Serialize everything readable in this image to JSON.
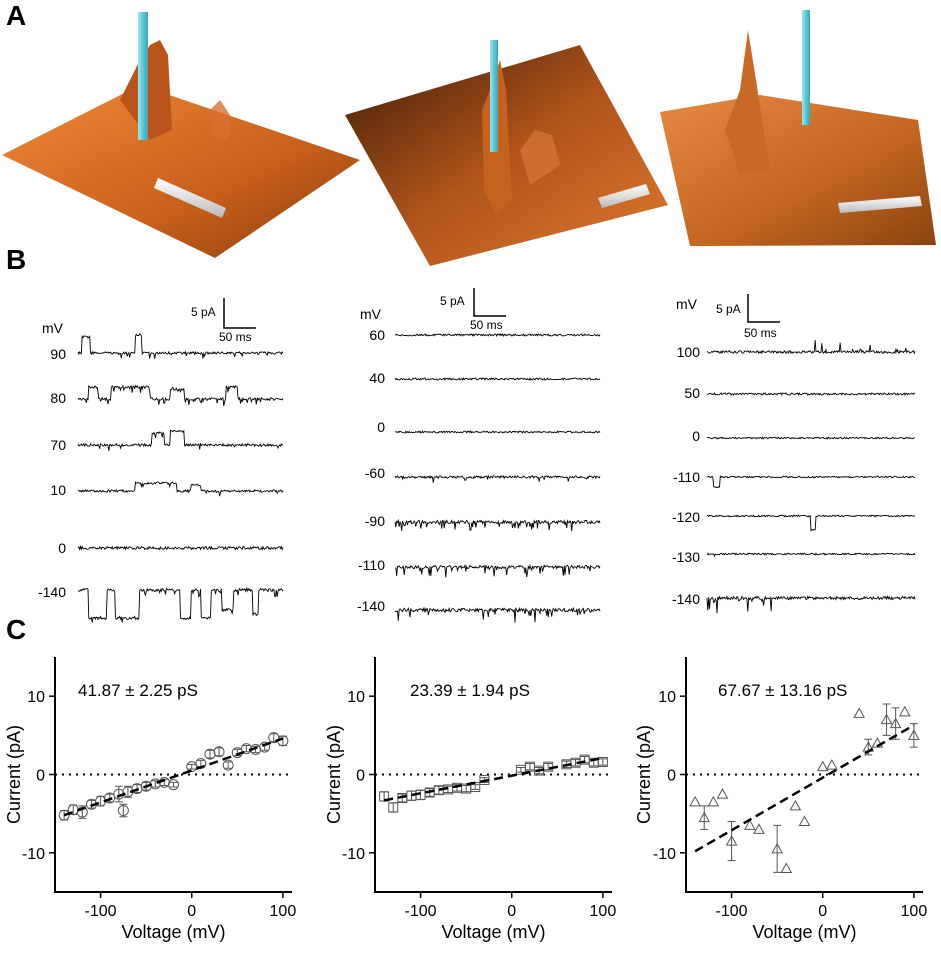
{
  "figure": {
    "panel_labels": [
      "A",
      "B",
      "C"
    ],
    "colors": {
      "surface": "#c8601a",
      "surface_light": "#f08a3a",
      "pipette": "#7fd6e0",
      "trace": "#000000",
      "fit": "#000000"
    }
  },
  "panelA": {
    "surfaces": [
      {
        "name": "surface-1"
      },
      {
        "name": "surface-2"
      },
      {
        "name": "surface-3"
      }
    ]
  },
  "panelB": {
    "columns": [
      {
        "mv_label": "mV",
        "scale_pA": "5 pA",
        "scale_ms": "50 ms",
        "voltages": [
          "90",
          "80",
          "70",
          "10",
          "0",
          "-140"
        ]
      },
      {
        "mv_label": "mV",
        "scale_pA": "5 pA",
        "scale_ms": "50 ms",
        "voltages": [
          "60",
          "40",
          "0",
          "-60",
          "-90",
          "-110",
          "-140"
        ]
      },
      {
        "mv_label": "mV",
        "scale_pA": "5 pA",
        "scale_ms": "50 ms",
        "voltages": [
          "100",
          "50",
          "0",
          "-110",
          "-120",
          "-130",
          "-140"
        ]
      }
    ]
  },
  "chart_data": [
    {
      "type": "scatter",
      "title": "",
      "annotation": "41.87 ± 2.25 pS",
      "xlabel": "Voltage (mV)",
      "ylabel": "Current (pA)",
      "xlim": [
        -150,
        110
      ],
      "ylim": [
        -15,
        15
      ],
      "xticks": [
        -100,
        0,
        100
      ],
      "yticks": [
        -10,
        0,
        10
      ],
      "marker": "circle",
      "zero_line": "dotted",
      "fit": {
        "x": [
          -140,
          100
        ],
        "y": [
          -5.2,
          4.6
        ]
      },
      "points": [
        {
          "x": -140,
          "y": -5.2,
          "err": 0.6
        },
        {
          "x": -130,
          "y": -4.5,
          "err": 0.6
        },
        {
          "x": -120,
          "y": -4.8,
          "err": 0.8
        },
        {
          "x": -110,
          "y": -3.8,
          "err": 0.5
        },
        {
          "x": -100,
          "y": -3.4,
          "err": 0.6
        },
        {
          "x": -90,
          "y": -3.0,
          "err": 0.5
        },
        {
          "x": -80,
          "y": -2.5,
          "err": 1.0
        },
        {
          "x": -75,
          "y": -4.6,
          "err": 0.8
        },
        {
          "x": -70,
          "y": -2.2,
          "err": 0.7
        },
        {
          "x": -60,
          "y": -1.8,
          "err": 0.5
        },
        {
          "x": -50,
          "y": -1.5,
          "err": 0.5
        },
        {
          "x": -40,
          "y": -1.2,
          "err": 0.4
        },
        {
          "x": -30,
          "y": -1.0,
          "err": 0.4
        },
        {
          "x": -20,
          "y": -1.3,
          "err": 0.3
        },
        {
          "x": 0,
          "y": 1.0,
          "err": 0.3
        },
        {
          "x": 10,
          "y": 1.4,
          "err": 0.4
        },
        {
          "x": 20,
          "y": 2.6,
          "err": 0.5
        },
        {
          "x": 30,
          "y": 2.9,
          "err": 0.5
        },
        {
          "x": 40,
          "y": 1.2,
          "err": 0.4
        },
        {
          "x": 50,
          "y": 2.8,
          "err": 0.4
        },
        {
          "x": 60,
          "y": 3.3,
          "err": 0.4
        },
        {
          "x": 70,
          "y": 3.2,
          "err": 0.4
        },
        {
          "x": 80,
          "y": 3.5,
          "err": 0.4
        },
        {
          "x": 90,
          "y": 4.7,
          "err": 0.5
        },
        {
          "x": 100,
          "y": 4.3,
          "err": 0.6
        }
      ]
    },
    {
      "type": "scatter",
      "title": "",
      "annotation": "23.39 ± 1.94 pS",
      "xlabel": "Voltage (mV)",
      "ylabel": "Current (pA)",
      "xlim": [
        -150,
        110
      ],
      "ylim": [
        -15,
        15
      ],
      "xticks": [
        -100,
        0,
        100
      ],
      "yticks": [
        -10,
        0,
        10
      ],
      "marker": "square",
      "zero_line": "dotted",
      "fit": {
        "x": [
          -140,
          100
        ],
        "y": [
          -3.3,
          2.1
        ]
      },
      "points": [
        {
          "x": -140,
          "y": -2.8,
          "err": 0.6
        },
        {
          "x": -130,
          "y": -4.2,
          "err": 0.6
        },
        {
          "x": -120,
          "y": -3.0,
          "err": 0.5
        },
        {
          "x": -110,
          "y": -2.7,
          "err": 0.6
        },
        {
          "x": -100,
          "y": -2.6,
          "err": 0.6
        },
        {
          "x": -90,
          "y": -2.3,
          "err": 0.5
        },
        {
          "x": -80,
          "y": -2.0,
          "err": 0.5
        },
        {
          "x": -70,
          "y": -1.9,
          "err": 0.4
        },
        {
          "x": -60,
          "y": -1.7,
          "err": 0.4
        },
        {
          "x": -50,
          "y": -1.8,
          "err": 0.4
        },
        {
          "x": -40,
          "y": -1.6,
          "err": 0.3
        },
        {
          "x": -30,
          "y": -0.7,
          "err": 0.3
        },
        {
          "x": 10,
          "y": 0.6,
          "err": 0.3
        },
        {
          "x": 20,
          "y": 1.0,
          "err": 0.4
        },
        {
          "x": 30,
          "y": 0.5,
          "err": 0.4
        },
        {
          "x": 40,
          "y": 1.0,
          "err": 0.4
        },
        {
          "x": 60,
          "y": 1.3,
          "err": 0.4
        },
        {
          "x": 70,
          "y": 1.5,
          "err": 0.4
        },
        {
          "x": 80,
          "y": 1.9,
          "err": 0.4
        },
        {
          "x": 90,
          "y": 1.5,
          "err": 0.4
        },
        {
          "x": 100,
          "y": 1.6,
          "err": 0.4
        }
      ]
    },
    {
      "type": "scatter",
      "title": "",
      "annotation": "67.67 ± 13.16 pS",
      "xlabel": "Voltage (mV)",
      "ylabel": "Current (pA)",
      "xlim": [
        -150,
        110
      ],
      "ylim": [
        -15,
        15
      ],
      "xticks": [
        -100,
        0,
        100
      ],
      "yticks": [
        -10,
        0,
        10
      ],
      "marker": "triangle",
      "zero_line": "dotted",
      "fit": {
        "x": [
          -140,
          100
        ],
        "y": [
          -9.8,
          6.3
        ]
      },
      "points": [
        {
          "x": -140,
          "y": -3.5,
          "err": 0.0
        },
        {
          "x": -130,
          "y": -5.5,
          "err": 1.5
        },
        {
          "x": -120,
          "y": -3.5,
          "err": 0.0
        },
        {
          "x": -110,
          "y": -2.5,
          "err": 0.0
        },
        {
          "x": -100,
          "y": -8.5,
          "err": 2.5
        },
        {
          "x": -80,
          "y": -6.5,
          "err": 0.0
        },
        {
          "x": -70,
          "y": -7.0,
          "err": 0.0
        },
        {
          "x": -50,
          "y": -9.5,
          "err": 3.0
        },
        {
          "x": -40,
          "y": -12.0,
          "err": 0.0
        },
        {
          "x": -30,
          "y": -4.0,
          "err": 0.0
        },
        {
          "x": -20,
          "y": -6.0,
          "err": 0.0
        },
        {
          "x": 0,
          "y": 1.0,
          "err": 0.0
        },
        {
          "x": 10,
          "y": 1.2,
          "err": 0.0
        },
        {
          "x": 40,
          "y": 7.8,
          "err": 0.0
        },
        {
          "x": 50,
          "y": 3.5,
          "err": 1.0
        },
        {
          "x": 60,
          "y": 4.0,
          "err": 0.0
        },
        {
          "x": 70,
          "y": 7.0,
          "err": 2.0
        },
        {
          "x": 80,
          "y": 6.5,
          "err": 2.0
        },
        {
          "x": 90,
          "y": 8.0,
          "err": 0.0
        },
        {
          "x": 100,
          "y": 5.0,
          "err": 1.5
        }
      ]
    }
  ]
}
